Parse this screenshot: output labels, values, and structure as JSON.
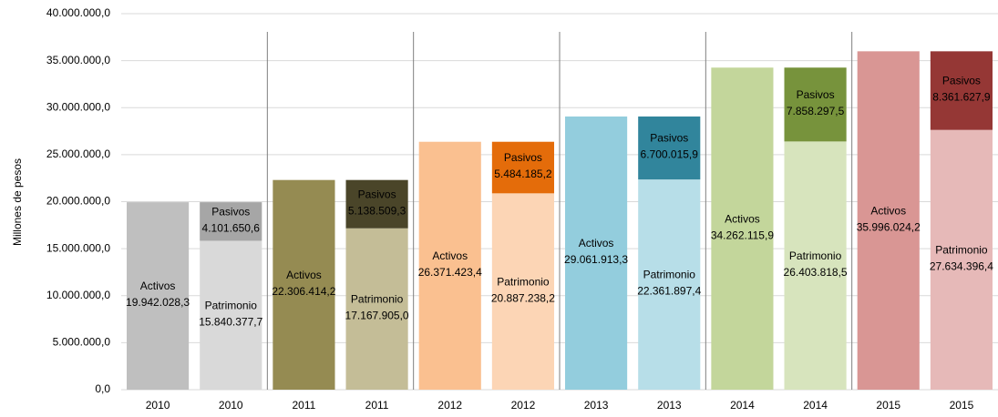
{
  "chart_data": {
    "type": "bar",
    "stacked": true,
    "y_label": "Millones de pesos",
    "categories": [
      "2010",
      "2010",
      "2011",
      "2011",
      "2012",
      "2012",
      "2013",
      "2013",
      "2014",
      "2014",
      "2015",
      "2015"
    ],
    "series": [
      {
        "name": "Activos",
        "values": [
          19942028.3,
          null,
          22306414.2,
          null,
          26371423.4,
          null,
          29061913.3,
          null,
          34262115.9,
          null,
          35996024.2,
          null
        ],
        "value_labels": [
          "19.942.028,3",
          null,
          "22.306.414,2",
          null,
          "26.371.423,4",
          null,
          "29.061.913,3",
          null,
          "34.262.115,9",
          null,
          "35.996.024,2",
          null
        ],
        "colors": [
          "#bfbfbf",
          null,
          "#958b52",
          null,
          "#fac090",
          null,
          "#93cddd",
          null,
          "#c3d69b",
          null,
          "#d99694",
          null
        ]
      },
      {
        "name": "Patrimonio",
        "values": [
          null,
          15840377.7,
          null,
          17167905.0,
          null,
          20887238.2,
          null,
          22361897.4,
          null,
          26403818.5,
          null,
          27634396.4
        ],
        "value_labels": [
          null,
          "15.840.377,7",
          null,
          "17.167.905,0",
          null,
          "20.887.238,2",
          null,
          "22.361.897,4",
          null,
          "26.403.818,5",
          null,
          "27.634.396,4"
        ],
        "colors": [
          null,
          "#d9d9d9",
          null,
          "#c4bd97",
          null,
          "#fcd5b5",
          null,
          "#b7dee8",
          null,
          "#d7e4bd",
          null,
          "#e6b9b8"
        ]
      },
      {
        "name": "Pasivos",
        "values": [
          null,
          4101650.6,
          null,
          5138509.3,
          null,
          5484185.2,
          null,
          6700015.9,
          null,
          7858297.5,
          null,
          8361627.9
        ],
        "value_labels": [
          null,
          "4.101.650,6",
          null,
          "5.138.509,3",
          null,
          "5.484.185,2",
          null,
          "6.700.015,9",
          null,
          "7.858.297,5",
          null,
          "8.361.627,9"
        ],
        "colors": [
          null,
          "#a6a6a6",
          null,
          "#4a4529",
          null,
          "#e46c0a",
          null,
          "#31859c",
          null,
          "#77933c",
          null,
          "#953735"
        ]
      }
    ],
    "ylim": [
      0,
      40000000
    ],
    "yticks": [
      {
        "value": 0,
        "label": "0,0"
      },
      {
        "value": 5000000,
        "label": "5.000.000,0"
      },
      {
        "value": 10000000,
        "label": "10.000.000,0"
      },
      {
        "value": 15000000,
        "label": "15.000.000,0"
      },
      {
        "value": 20000000,
        "label": "20.000.000,0"
      },
      {
        "value": 25000000,
        "label": "25.000.000,0"
      },
      {
        "value": 30000000,
        "label": "30.000.000,0"
      },
      {
        "value": 35000000,
        "label": "35.000.000,0"
      },
      {
        "value": 40000000,
        "label": "40.000.000,0"
      }
    ],
    "grid": true
  }
}
